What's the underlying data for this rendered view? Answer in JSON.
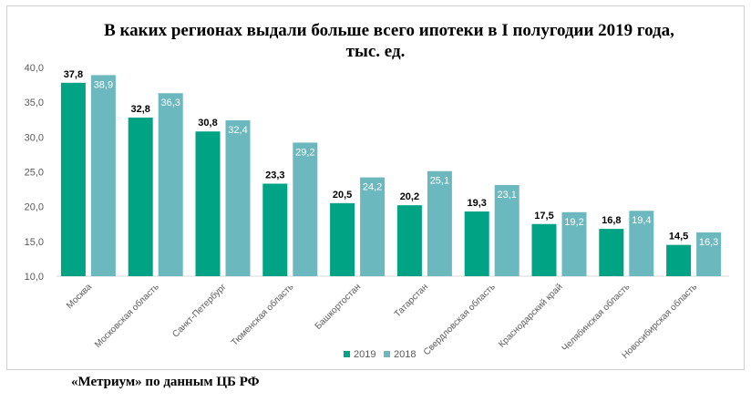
{
  "title_line1": "В каких регионах выдали больше всего ипотеки в I полугодии 2019 года,",
  "title_line2": "тыс. ед.",
  "source": "«Метриум» по данным ЦБ РФ",
  "colors": {
    "2019": "#00a383",
    "2018": "#6cb8bf"
  },
  "chart_data": {
    "type": "bar",
    "title": "В каких регионах выдали больше всего ипотеки в I полугодии 2019 года, тыс. ед.",
    "categories": [
      "Москва",
      "Московская область",
      "Санкт-Петербург",
      "Тюменская область",
      "Башкортостан",
      "Татарстан",
      "Свердловская область",
      "Краснодарский край",
      "Челябинская область",
      "Новосибирская область"
    ],
    "series": [
      {
        "name": "2019",
        "values": [
          37.8,
          32.8,
          30.8,
          23.3,
          20.5,
          20.2,
          19.3,
          17.5,
          16.8,
          14.5
        ]
      },
      {
        "name": "2018",
        "values": [
          38.9,
          36.3,
          32.4,
          29.2,
          24.2,
          25.1,
          23.1,
          19.2,
          19.4,
          16.3
        ]
      }
    ],
    "value_labels": [
      [
        "37,8",
        "32,8",
        "30,8",
        "23,3",
        "20,5",
        "20,2",
        "19,3",
        "17,5",
        "16,8",
        "14,5"
      ],
      [
        "38,9",
        "36,3",
        "32,4",
        "29,2",
        "24,2",
        "25,1",
        "23,1",
        "19,2",
        "19,4",
        "16,3"
      ]
    ],
    "yticks": [
      "10,0",
      "15,0",
      "20,0",
      "25,0",
      "30,0",
      "35,0",
      "40,0"
    ],
    "ylim": [
      10,
      40
    ],
    "xlabel": "",
    "ylabel": "",
    "legend": "bottom",
    "grid": false
  }
}
